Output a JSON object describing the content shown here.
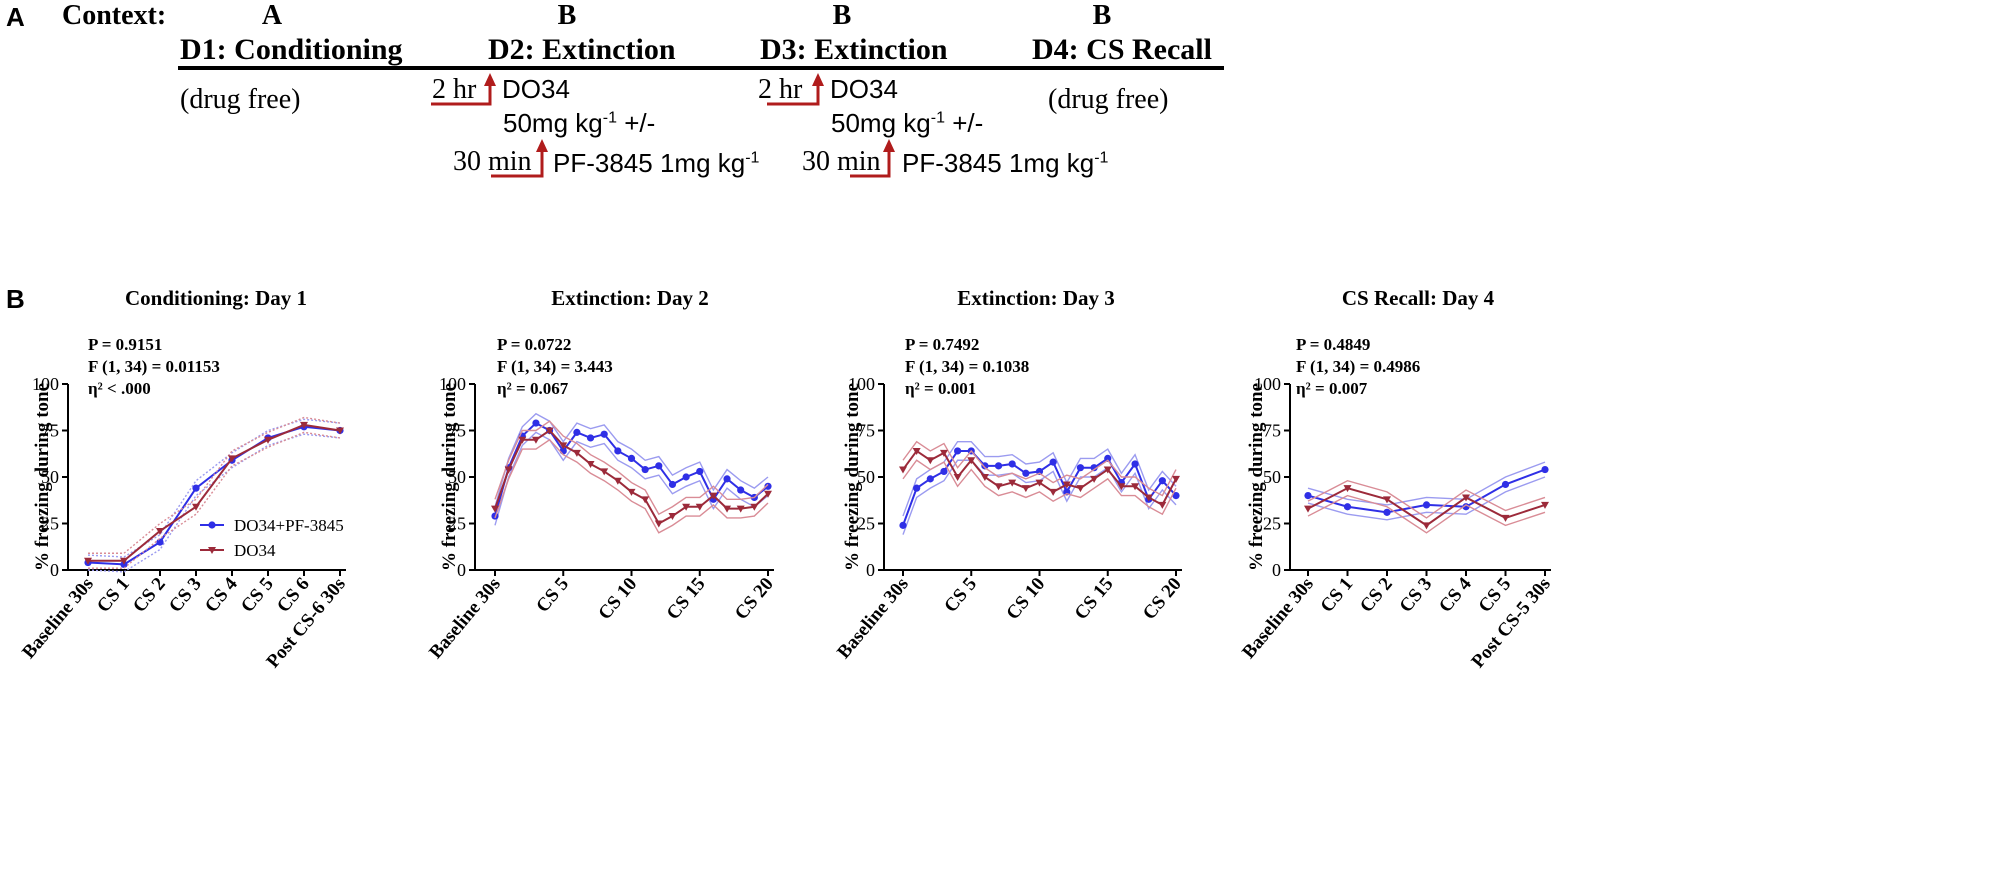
{
  "panel_a": {
    "letter": "A",
    "context_label": "Context:",
    "contexts": [
      "A",
      "B",
      "B",
      "B"
    ],
    "days": [
      "D1: Conditioning",
      "D2: Extinction",
      "D3: Extinction",
      "D4: CS Recall"
    ],
    "drug_free_1": "(drug free)",
    "drug_free_2": "(drug free)",
    "time_2hr": "2 hr",
    "time_30min": "30 min",
    "drug_do34": "DO34",
    "drug_dose_base": "50mg kg",
    "drug_dose_exp": "-1",
    "drug_dose_tail": " +/-",
    "drug_pf_base": "PF-3845 1mg kg",
    "drug_pf_exp": "-1",
    "arrow_color": "#b01c1c"
  },
  "panel_b": {
    "letter": "B",
    "ylabel": "% freezing during tone",
    "legend": [
      "DO34+PF-3845",
      "DO34"
    ],
    "colors": {
      "combo": "#2f2fe6",
      "combo_band": "#9b9bf0",
      "do34": "#9c2a3a",
      "do34_band": "#d98c96"
    }
  },
  "chart_data": [
    {
      "type": "line",
      "title": "Conditioning: Day 1",
      "stats": [
        "P = 0.9151",
        "F (1, 34) = 0.01153",
        "η² < .000"
      ],
      "ylim": [
        0,
        100
      ],
      "yticks": [
        "0",
        "25",
        "50",
        "75",
        "100"
      ],
      "categories": [
        "Baseline 30s",
        "CS 1",
        "CS 2",
        "CS 3",
        "CS 4",
        "CS 5",
        "CS 6",
        "Post CS-6 30s"
      ],
      "series": [
        {
          "name": "DO34+PF-3845",
          "values": [
            4,
            3,
            15,
            44,
            59,
            71,
            77,
            75
          ]
        },
        {
          "name": "DO34",
          "values": [
            5,
            5,
            21,
            34,
            60,
            70,
            78,
            75
          ]
        }
      ]
    },
    {
      "type": "line",
      "title": "Extinction: Day 2",
      "stats": [
        "P = 0.0722",
        "F (1, 34) = 3.443",
        "η² = 0.067"
      ],
      "ylim": [
        0,
        100
      ],
      "yticks": [
        "0",
        "25",
        "50",
        "75",
        "100"
      ],
      "categories": [
        "Baseline 30s",
        "CS 1",
        "CS 2",
        "CS 3",
        "CS 4",
        "CS 5",
        "CS 6",
        "CS 7",
        "CS 8",
        "CS 9",
        "CS 10",
        "CS 11",
        "CS 12",
        "CS 13",
        "CS 14",
        "CS 15",
        "CS 16",
        "CS 17",
        "CS 18",
        "CS 19",
        "CS 20"
      ],
      "xticklabels": [
        "Baseline 30s",
        "CS 5",
        "CS 10",
        "CS 15",
        "CS 20"
      ],
      "series": [
        {
          "name": "DO34+PF-3845",
          "values": [
            29,
            55,
            72,
            79,
            75,
            64,
            74,
            71,
            73,
            64,
            60,
            54,
            56,
            46,
            50,
            53,
            38,
            49,
            43,
            39,
            45
          ]
        },
        {
          "name": "DO34",
          "values": [
            33,
            54,
            70,
            70,
            75,
            67,
            63,
            57,
            53,
            48,
            42,
            38,
            25,
            29,
            34,
            34,
            40,
            33,
            33,
            34,
            41
          ]
        }
      ]
    },
    {
      "type": "line",
      "title": "Extinction: Day 3",
      "stats": [
        "P = 0.7492",
        "F (1, 34) = 0.1038",
        "η² = 0.001"
      ],
      "ylim": [
        0,
        100
      ],
      "yticks": [
        "0",
        "25",
        "50",
        "75",
        "100"
      ],
      "categories": [
        "Baseline 30s",
        "CS 1",
        "CS 2",
        "CS 3",
        "CS 4",
        "CS 5",
        "CS 6",
        "CS 7",
        "CS 8",
        "CS 9",
        "CS 10",
        "CS 11",
        "CS 12",
        "CS 13",
        "CS 14",
        "CS 15",
        "CS 16",
        "CS 17",
        "CS 18",
        "CS 19",
        "CS 20"
      ],
      "xticklabels": [
        "Baseline 30s",
        "CS 5",
        "CS 10",
        "CS 15",
        "CS 20"
      ],
      "series": [
        {
          "name": "DO34+PF-3845",
          "values": [
            24,
            44,
            49,
            53,
            64,
            64,
            56,
            56,
            57,
            52,
            53,
            58,
            42,
            55,
            55,
            60,
            47,
            57,
            38,
            48,
            40
          ]
        },
        {
          "name": "DO34",
          "values": [
            54,
            64,
            59,
            63,
            50,
            59,
            50,
            45,
            47,
            44,
            47,
            42,
            46,
            44,
            49,
            54,
            45,
            45,
            39,
            35,
            49
          ]
        }
      ]
    },
    {
      "type": "line",
      "title": "CS Recall: Day 4",
      "stats": [
        "P = 0.4849",
        "F (1, 34) = 0.4986",
        "η² = 0.007"
      ],
      "ylim": [
        0,
        100
      ],
      "yticks": [
        "0",
        "25",
        "50",
        "75",
        "100"
      ],
      "categories": [
        "Baseline 30s",
        "CS 1",
        "CS 2",
        "CS 3",
        "CS 4",
        "CS 5",
        "Post CS-5 30s"
      ],
      "series": [
        {
          "name": "DO34+PF-3845",
          "values": [
            40,
            34,
            31,
            35,
            34,
            46,
            54
          ]
        },
        {
          "name": "DO34",
          "values": [
            33,
            44,
            38,
            24,
            39,
            28,
            35
          ]
        }
      ]
    }
  ]
}
